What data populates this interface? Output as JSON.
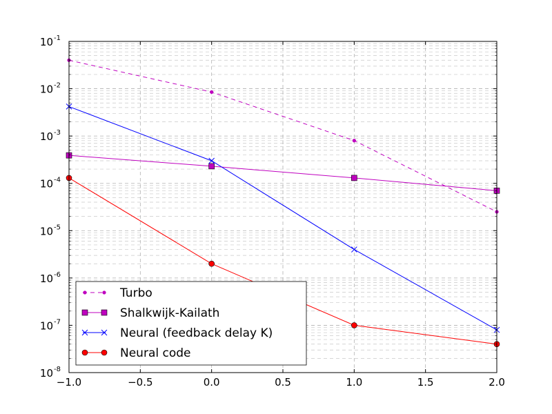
{
  "chart_data": {
    "type": "line",
    "title": "",
    "xlabel": "",
    "ylabel": "",
    "xlim": [
      -1.0,
      2.0
    ],
    "ylim": [
      1e-08,
      0.1
    ],
    "yscale": "log",
    "grid": true,
    "legend_position": "lower-left",
    "x_ticks": [
      "−1.0",
      "−0.5",
      "0.0",
      "0.5",
      "1.0",
      "1.5",
      "2.0"
    ],
    "x_tick_values": [
      -1.0,
      -0.5,
      0.0,
      0.5,
      1.0,
      1.5,
      2.0
    ],
    "y_ticks": [
      {
        "base": "10",
        "exp": "-8"
      },
      {
        "base": "10",
        "exp": "-7"
      },
      {
        "base": "10",
        "exp": "-6"
      },
      {
        "base": "10",
        "exp": "-5"
      },
      {
        "base": "10",
        "exp": "-4"
      },
      {
        "base": "10",
        "exp": "-3"
      },
      {
        "base": "10",
        "exp": "-2"
      },
      {
        "base": "10",
        "exp": "-1"
      }
    ],
    "series": [
      {
        "name": "Turbo",
        "color": "#bf00bf",
        "line": "dashed",
        "marker": "dot",
        "x": [
          -1.0,
          0.0,
          1.0,
          2.0
        ],
        "y": [
          0.04,
          0.0085,
          0.0008,
          2.5e-05
        ]
      },
      {
        "name": "Shalkwijk-Kailath",
        "color": "#bf00bf",
        "line": "solid",
        "marker": "square",
        "x": [
          -1.0,
          0.0,
          1.0,
          2.0
        ],
        "y": [
          0.00039,
          0.00023,
          0.00013,
          7e-05
        ]
      },
      {
        "name": "Neural (feedback delay K)",
        "color": "#0000ff",
        "line": "solid",
        "marker": "x",
        "x": [
          -1.0,
          0.0,
          1.0,
          2.0
        ],
        "y": [
          0.0042,
          0.0003,
          4e-06,
          8e-08
        ]
      },
      {
        "name": "Neural code",
        "color": "#ff0000",
        "line": "solid",
        "marker": "circle",
        "x": [
          -1.0,
          0.0,
          1.0,
          2.0
        ],
        "y": [
          0.00013,
          2e-06,
          1e-07,
          4e-08
        ]
      }
    ]
  }
}
